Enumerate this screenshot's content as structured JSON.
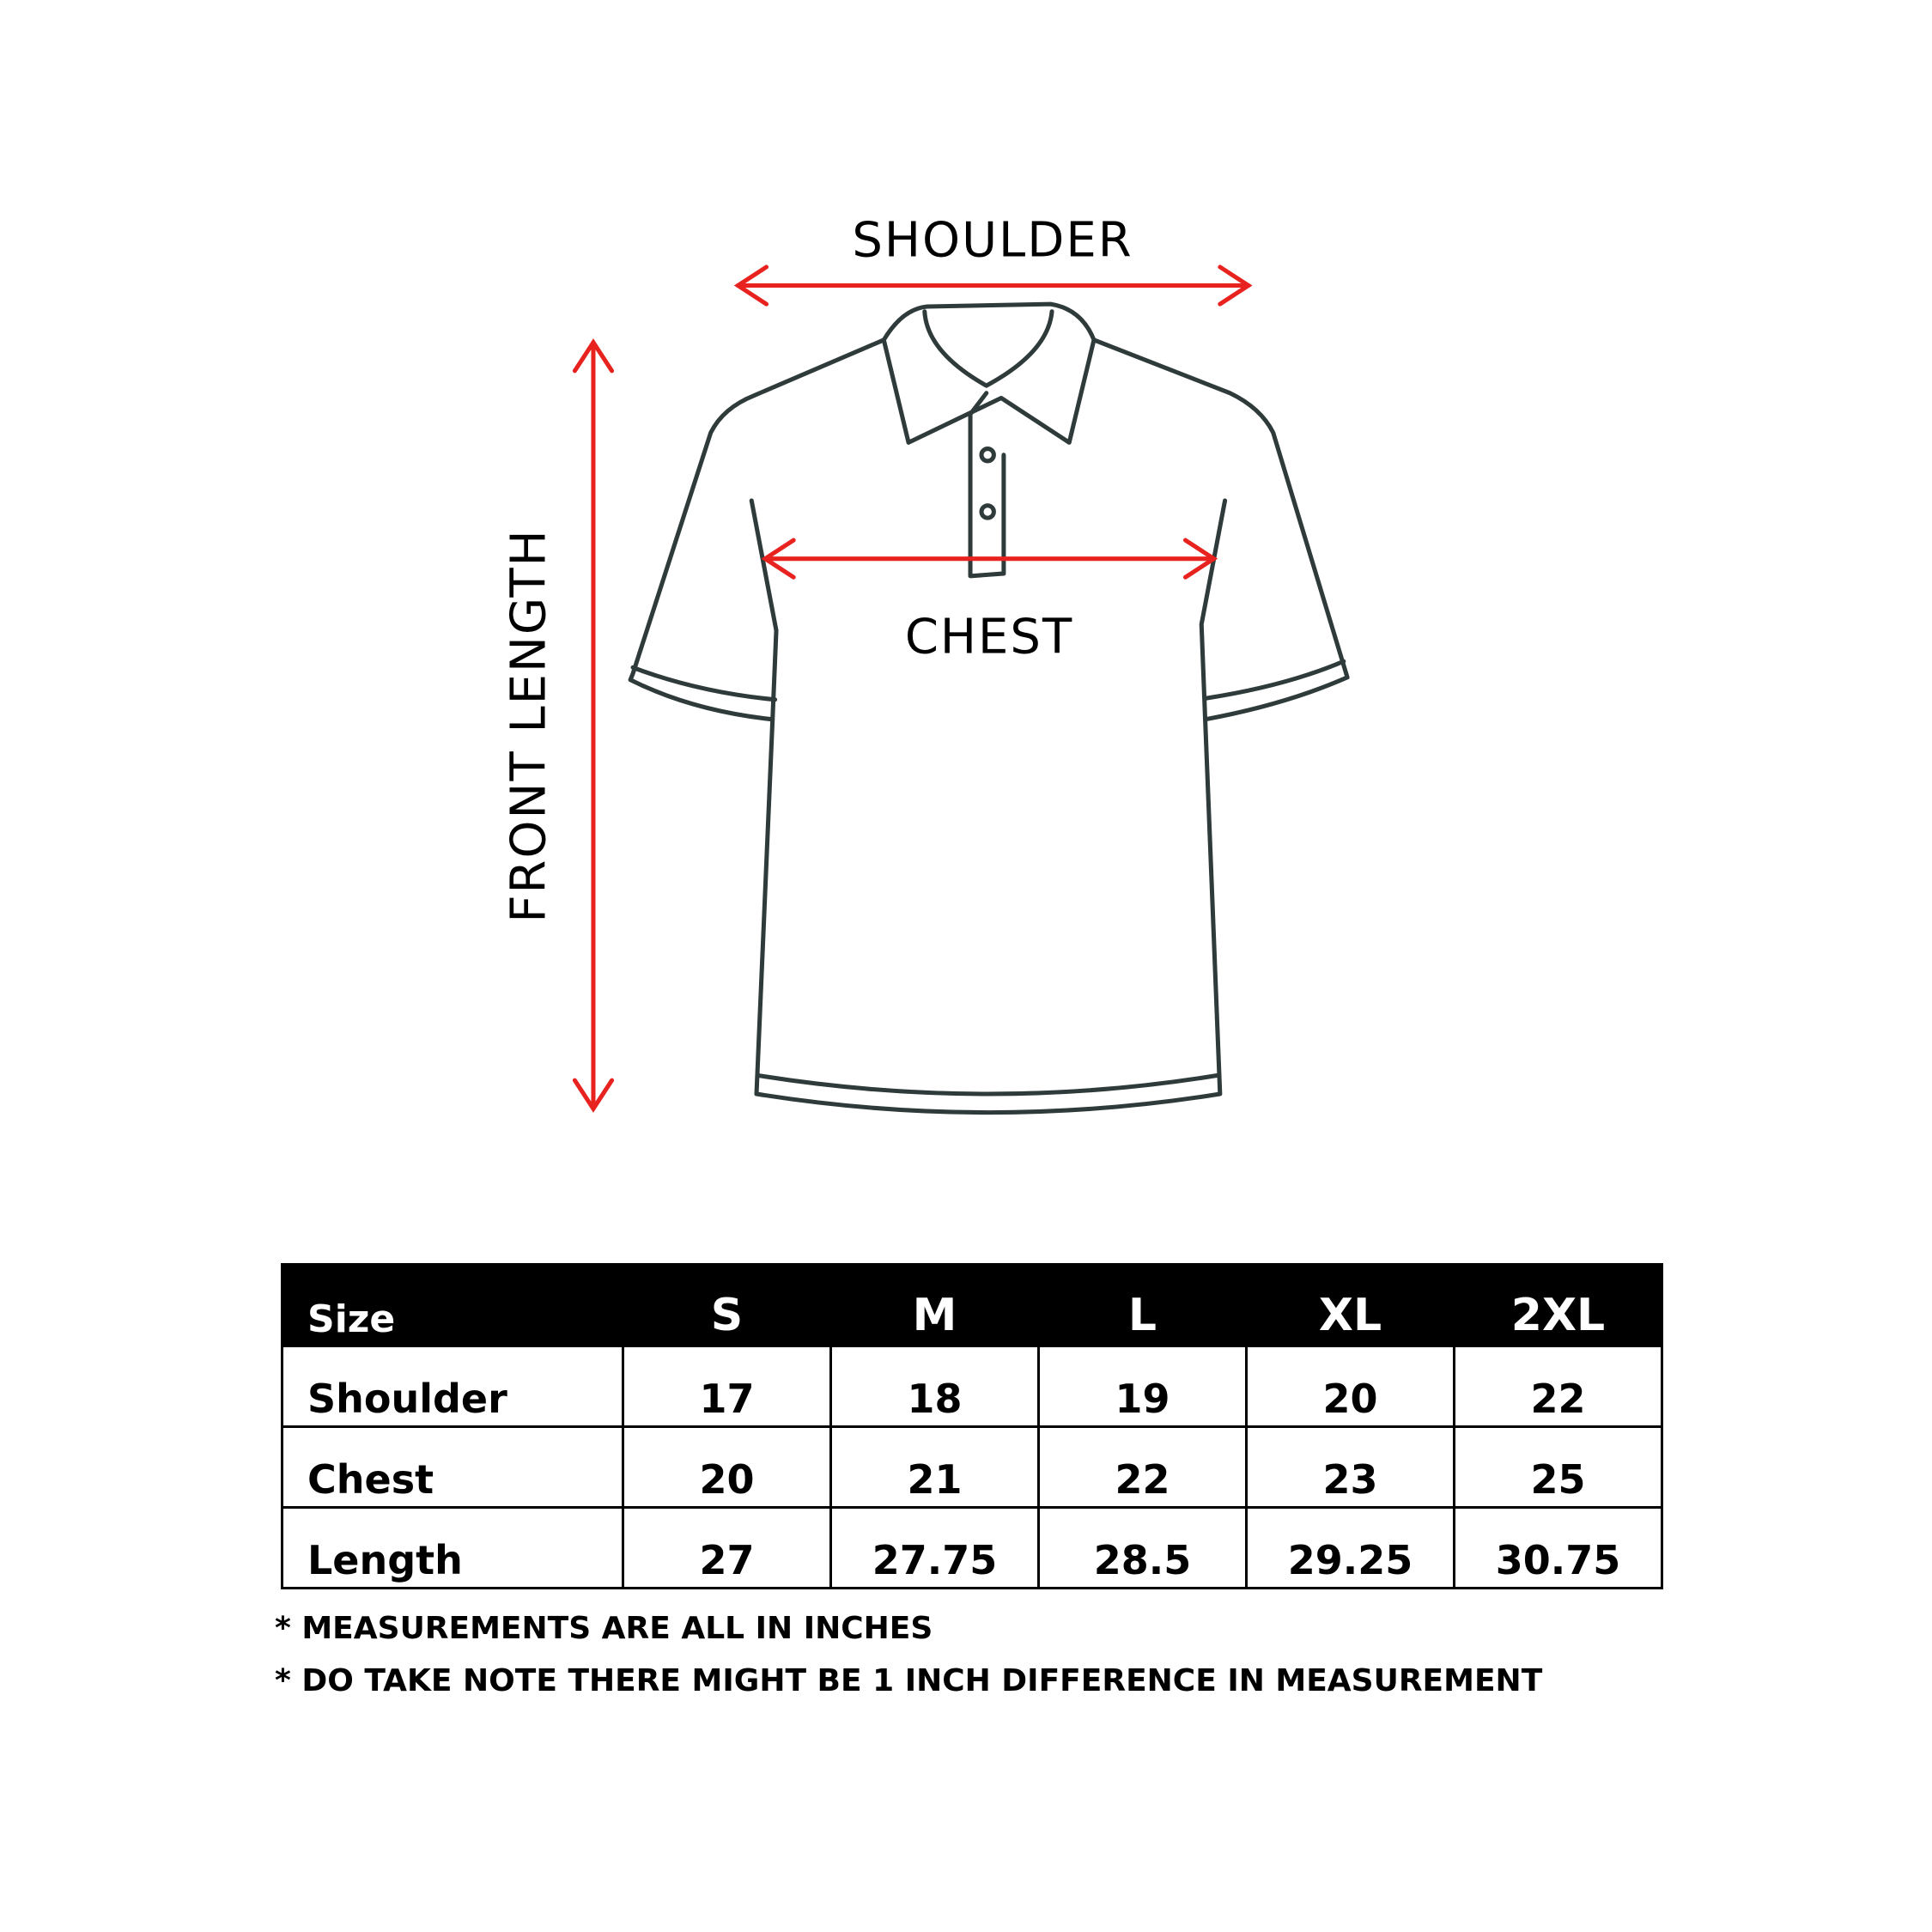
{
  "diagram": {
    "labels": {
      "shoulder": "SHOULDER",
      "chest": "CHEST",
      "front_length": "FRONT LENGTH"
    },
    "colors": {
      "arrow": "#e8231f",
      "outline": "#2f3a3a"
    }
  },
  "table": {
    "headers": [
      "Size",
      "S",
      "M",
      "L",
      "XL",
      "2XL"
    ],
    "rows": [
      {
        "label": "Shoulder",
        "values": [
          "17",
          "18",
          "19",
          "20",
          "22"
        ]
      },
      {
        "label": "Chest",
        "values": [
          "20",
          "21",
          "22",
          "23",
          "25"
        ]
      },
      {
        "label": "Length",
        "values": [
          "27",
          "27.75",
          "28.5",
          "29.25",
          "30.75"
        ]
      }
    ]
  },
  "notes": [
    "* MEASUREMENTS ARE ALL IN INCHES",
    "* DO TAKE NOTE THERE MIGHT BE 1 INCH DIFFERENCE IN MEASUREMENT"
  ]
}
